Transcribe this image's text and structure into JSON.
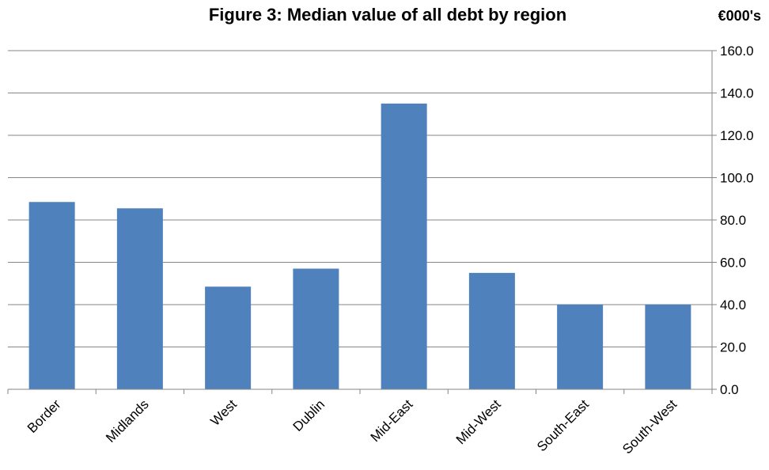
{
  "chart_data": {
    "type": "bar",
    "title": "Figure 3: Median value of all debt by region",
    "unit_label": "€000's",
    "categories": [
      "Border",
      "Midlands",
      "West",
      "Dublin",
      "Mid-East",
      "Mid-West",
      "South-East",
      "South-West"
    ],
    "values": [
      88.5,
      85.5,
      48.5,
      57.0,
      135.0,
      55.0,
      40.0,
      40.0
    ],
    "ylim": [
      0,
      160
    ],
    "y_ticks": [
      "0.0",
      "20.0",
      "40.0",
      "60.0",
      "80.0",
      "100.0",
      "120.0",
      "140.0",
      "160.0"
    ],
    "y_axis_position": "right",
    "grid": true,
    "bar_color": "#4f81bd"
  }
}
